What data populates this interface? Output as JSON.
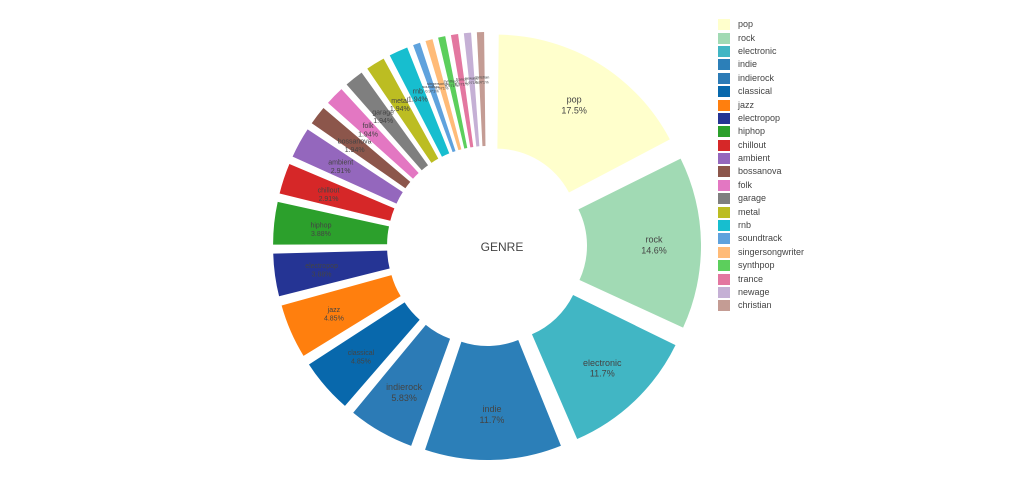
{
  "chart_data": {
    "type": "pie",
    "hole_title": "GENRE",
    "legend_position": "right",
    "slices": [
      {
        "label": "pop",
        "percent_text": "17.5%",
        "value": 17.48,
        "color": "#ffffcc"
      },
      {
        "label": "rock",
        "percent_text": "14.6%",
        "value": 14.56,
        "color": "#a1dab4"
      },
      {
        "label": "electronic",
        "percent_text": "11.7%",
        "value": 11.65,
        "color": "#41b6c4"
      },
      {
        "label": "indie",
        "percent_text": "11.7%",
        "value": 11.65,
        "color": "#2c7fb8"
      },
      {
        "label": "indierock",
        "percent_text": "5.83%",
        "value": 5.83,
        "color": "#2c7bb6"
      },
      {
        "label": "classical",
        "percent_text": "4.85%",
        "value": 4.85,
        "color": "#0868ac"
      },
      {
        "label": "jazz",
        "percent_text": "4.85%",
        "value": 4.85,
        "color": "#ff7f0e"
      },
      {
        "label": "electropop",
        "percent_text": "3.88%",
        "value": 3.88,
        "color": "#253494"
      },
      {
        "label": "hiphop",
        "percent_text": "3.88%",
        "value": 3.88,
        "color": "#2ca02c"
      },
      {
        "label": "chillout",
        "percent_text": "2.91%",
        "value": 2.91,
        "color": "#d62728"
      },
      {
        "label": "ambient",
        "percent_text": "2.91%",
        "value": 2.91,
        "color": "#9467bd"
      },
      {
        "label": "bossanova",
        "percent_text": "1.94%",
        "value": 1.94,
        "color": "#8c564b"
      },
      {
        "label": "folk",
        "percent_text": "1.94%",
        "value": 1.94,
        "color": "#e377c2"
      },
      {
        "label": "garage",
        "percent_text": "1.94%",
        "value": 1.94,
        "color": "#7f7f7f"
      },
      {
        "label": "metal",
        "percent_text": "1.94%",
        "value": 1.94,
        "color": "#bcbd22"
      },
      {
        "label": "rnb",
        "percent_text": "1.94%",
        "value": 1.94,
        "color": "#17becf"
      },
      {
        "label": "soundtrack",
        "percent_text": "0.971%",
        "value": 0.971,
        "color": "#5fa2dd"
      },
      {
        "label": "singersongwriter",
        "percent_text": "0.971%",
        "value": 0.971,
        "color": "#ffbb78"
      },
      {
        "label": "synthpop",
        "percent_text": "0.971%",
        "value": 0.971,
        "color": "#5ccf5c"
      },
      {
        "label": "trance",
        "percent_text": "0.971%",
        "value": 0.971,
        "color": "#e377a0"
      },
      {
        "label": "newage",
        "percent_text": "0.971%",
        "value": 0.971,
        "color": "#c5b0d5"
      },
      {
        "label": "christian",
        "percent_text": "0.971%",
        "value": 0.971,
        "color": "#c49c94"
      }
    ]
  }
}
